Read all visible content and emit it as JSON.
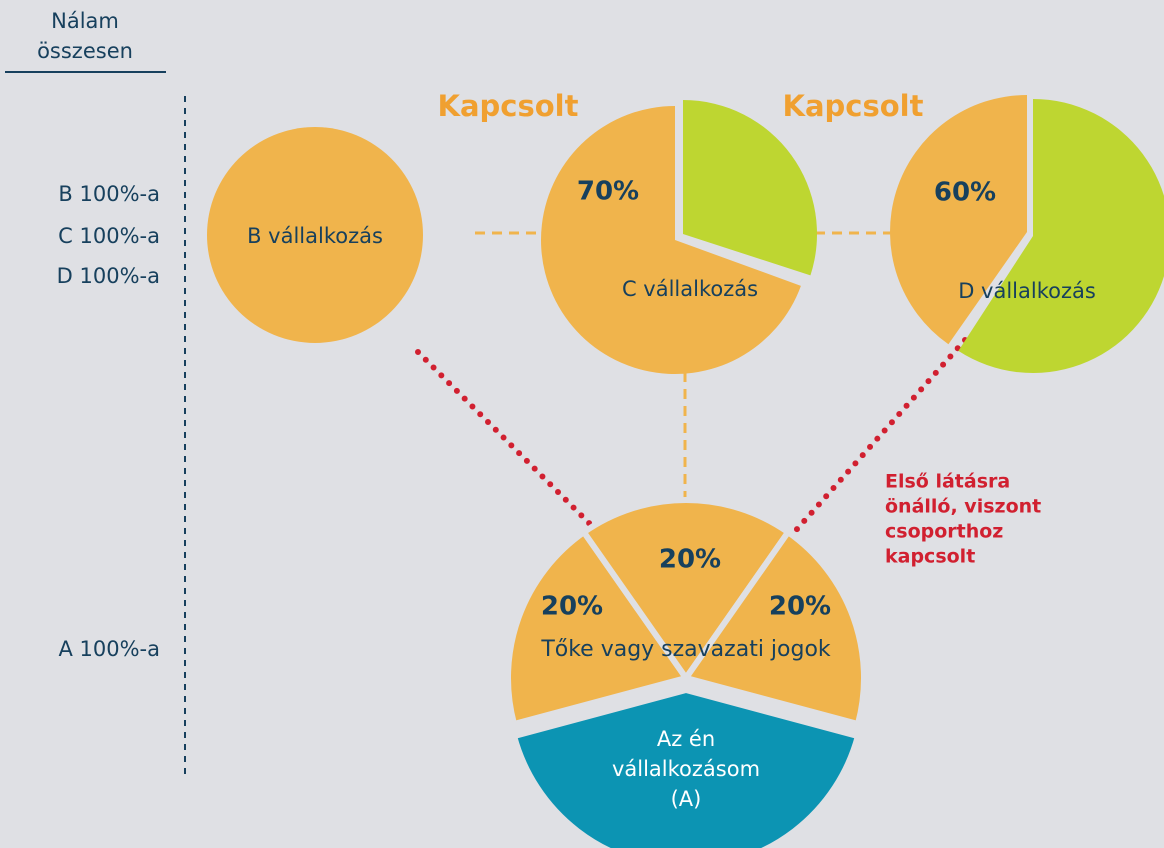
{
  "header": {
    "lines": [
      "Nálam",
      "összesen"
    ]
  },
  "levels": [
    "B 100%-a",
    "C 100%-a",
    "D 100%-a",
    "A 100%-a"
  ],
  "nodes": [
    {
      "label": "B vállalkozás"
    },
    {
      "tag": "Kapcsolt",
      "share": "70%",
      "label": "C vállalkozás"
    },
    {
      "tag": "Kapcsolt",
      "share": "60%",
      "label": "D vállalkozás"
    },
    {
      "shares": [
        "20%",
        "20%",
        "20%"
      ],
      "caption": "Tőke vagy szavazati jogok",
      "label": [
        "Az én",
        "vállalkozásom",
        "(A)"
      ]
    }
  ],
  "note": [
    "Első látásra",
    "önálló, viszont",
    "csoporthoz",
    "kapcsolt"
  ]
}
